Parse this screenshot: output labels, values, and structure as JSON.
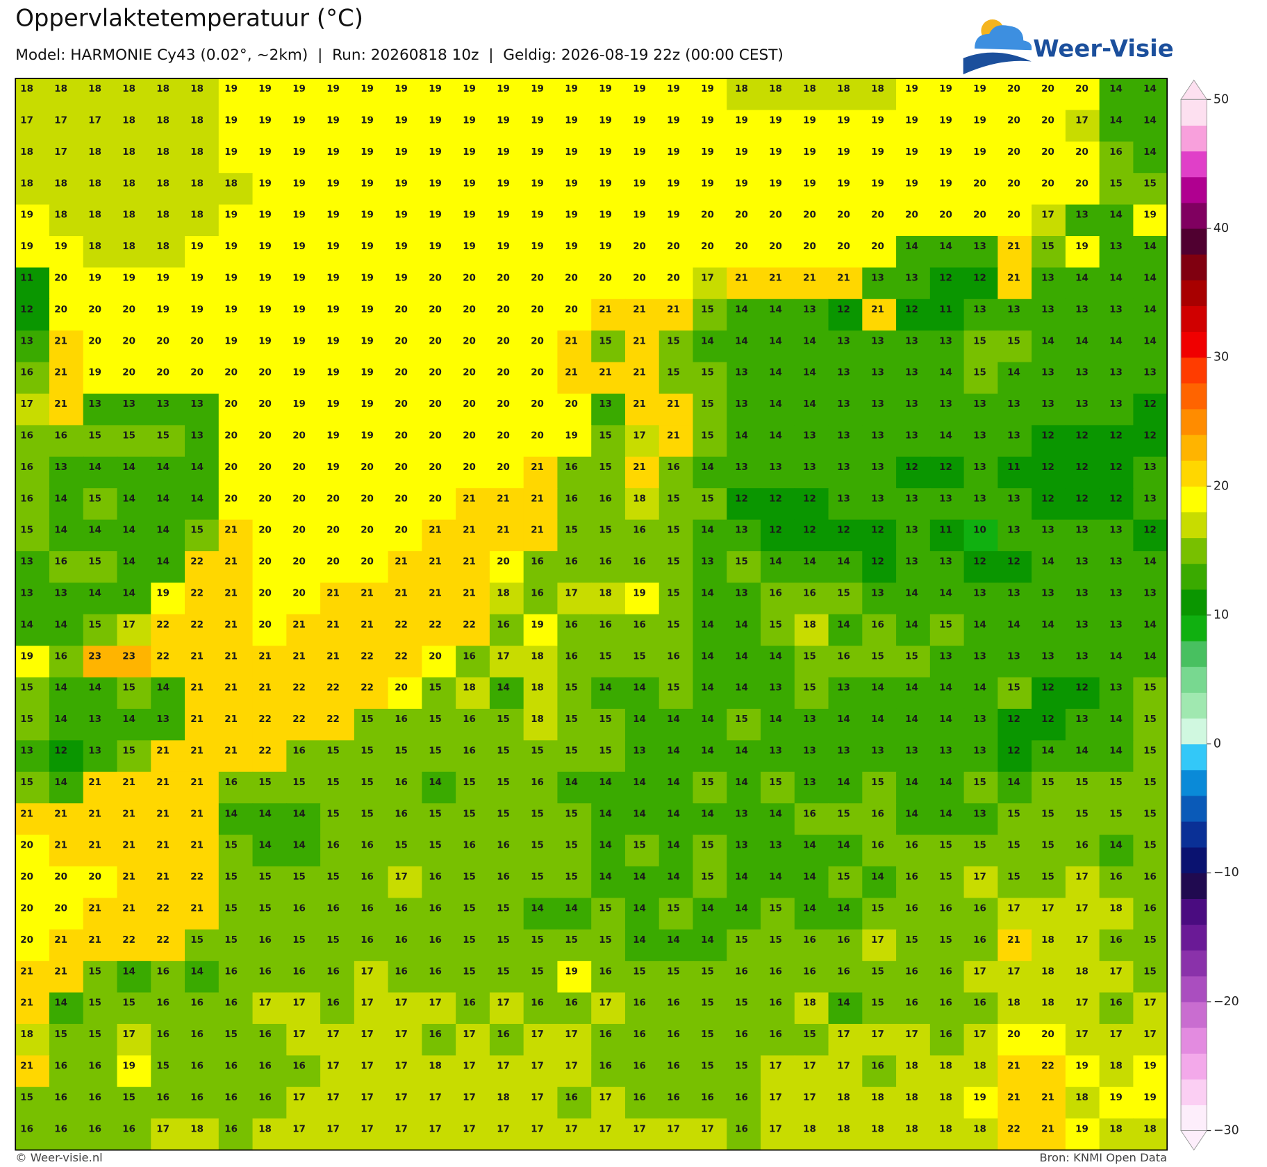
{
  "header": {
    "title": "Oppervlaktetemperatuur (°C)",
    "subtitle": "Model: HARMONIE Cy43 (0.02°, ~2km)  |  Run: 20260818 10z  |  Geldig: 2026-08-19 22z (00:00 CEST)"
  },
  "logo": {
    "text": "Weer-Visie"
  },
  "map": {
    "grid": [
      [
        18,
        18,
        18,
        18,
        18,
        18,
        19,
        19,
        19,
        19,
        19,
        19,
        19,
        19,
        19,
        19,
        19,
        19,
        19,
        19,
        19,
        18,
        18,
        18,
        18,
        18,
        19,
        19,
        19,
        20,
        20,
        20,
        14,
        14
      ],
      [
        17,
        17,
        17,
        18,
        18,
        18,
        19,
        19,
        19,
        19,
        19,
        19,
        19,
        19,
        19,
        19,
        19,
        19,
        19,
        19,
        19,
        19,
        19,
        19,
        19,
        19,
        19,
        19,
        19,
        20,
        20,
        17,
        14,
        14
      ],
      [
        18,
        17,
        18,
        18,
        18,
        18,
        19,
        19,
        19,
        19,
        19,
        19,
        19,
        19,
        19,
        19,
        19,
        19,
        19,
        19,
        19,
        19,
        19,
        19,
        19,
        19,
        19,
        19,
        19,
        20,
        20,
        20,
        16,
        14
      ],
      [
        18,
        18,
        18,
        18,
        18,
        18,
        18,
        19,
        19,
        19,
        19,
        19,
        19,
        19,
        19,
        19,
        19,
        19,
        19,
        19,
        19,
        19,
        19,
        19,
        19,
        19,
        19,
        19,
        20,
        20,
        20,
        20,
        15,
        15
      ],
      [
        19,
        18,
        18,
        18,
        18,
        18,
        19,
        19,
        19,
        19,
        19,
        19,
        19,
        19,
        19,
        19,
        19,
        19,
        19,
        19,
        20,
        20,
        20,
        20,
        20,
        20,
        20,
        20,
        20,
        20,
        17,
        13,
        14,
        19
      ],
      [
        19,
        19,
        18,
        18,
        18,
        19,
        19,
        19,
        19,
        19,
        19,
        19,
        19,
        19,
        19,
        19,
        19,
        19,
        20,
        20,
        20,
        20,
        20,
        20,
        20,
        20,
        14,
        14,
        13,
        21,
        15,
        19,
        13,
        14
      ],
      [
        11,
        20,
        19,
        19,
        19,
        19,
        19,
        19,
        19,
        19,
        19,
        19,
        20,
        20,
        20,
        20,
        20,
        20,
        20,
        20,
        17,
        21,
        21,
        21,
        21,
        13,
        13,
        12,
        12,
        21,
        13,
        14,
        14,
        14
      ],
      [
        12,
        20,
        20,
        20,
        19,
        19,
        19,
        19,
        19,
        19,
        19,
        20,
        20,
        20,
        20,
        20,
        20,
        21,
        21,
        21,
        15,
        14,
        14,
        13,
        12,
        21,
        12,
        11,
        13,
        13,
        13,
        13,
        13,
        14
      ],
      [
        13,
        21,
        20,
        20,
        20,
        20,
        19,
        19,
        19,
        19,
        19,
        20,
        20,
        20,
        20,
        20,
        21,
        15,
        21,
        15,
        14,
        14,
        14,
        14,
        13,
        13,
        13,
        13,
        15,
        15,
        14,
        14,
        14,
        14
      ],
      [
        16,
        21,
        19,
        20,
        20,
        20,
        20,
        20,
        19,
        19,
        19,
        20,
        20,
        20,
        20,
        20,
        21,
        21,
        21,
        15,
        15,
        13,
        14,
        14,
        13,
        13,
        13,
        14,
        15,
        14,
        13,
        13,
        13,
        13
      ],
      [
        17,
        21,
        13,
        13,
        13,
        13,
        20,
        20,
        19,
        19,
        19,
        20,
        20,
        20,
        20,
        20,
        20,
        13,
        21,
        21,
        15,
        13,
        14,
        14,
        13,
        13,
        13,
        13,
        13,
        13,
        13,
        13,
        13,
        12
      ],
      [
        16,
        16,
        15,
        15,
        15,
        13,
        20,
        20,
        20,
        19,
        19,
        20,
        20,
        20,
        20,
        20,
        19,
        15,
        17,
        21,
        15,
        14,
        14,
        13,
        13,
        13,
        13,
        14,
        13,
        13,
        12,
        12,
        12,
        12
      ],
      [
        16,
        13,
        14,
        14,
        14,
        14,
        20,
        20,
        20,
        19,
        20,
        20,
        20,
        20,
        20,
        21,
        16,
        15,
        21,
        16,
        14,
        13,
        13,
        13,
        13,
        13,
        12,
        12,
        13,
        11,
        12,
        12,
        12,
        13
      ],
      [
        16,
        14,
        15,
        14,
        14,
        14,
        20,
        20,
        20,
        20,
        20,
        20,
        20,
        21,
        21,
        21,
        16,
        16,
        18,
        15,
        15,
        12,
        12,
        12,
        13,
        13,
        13,
        13,
        13,
        13,
        12,
        12,
        12,
        13
      ],
      [
        15,
        14,
        14,
        14,
        14,
        15,
        21,
        20,
        20,
        20,
        20,
        20,
        21,
        21,
        21,
        21,
        15,
        15,
        16,
        15,
        14,
        13,
        12,
        12,
        12,
        12,
        13,
        11,
        10,
        13,
        13,
        13,
        13,
        12
      ],
      [
        13,
        16,
        15,
        14,
        14,
        22,
        21,
        20,
        20,
        20,
        20,
        21,
        21,
        21,
        20,
        16,
        16,
        16,
        16,
        15,
        13,
        15,
        14,
        14,
        14,
        12,
        13,
        13,
        12,
        12,
        14,
        13,
        13,
        14
      ],
      [
        13,
        13,
        14,
        14,
        19,
        22,
        21,
        20,
        20,
        21,
        21,
        21,
        21,
        21,
        18,
        16,
        17,
        18,
        19,
        15,
        14,
        13,
        16,
        16,
        15,
        13,
        14,
        14,
        13,
        13,
        13,
        13,
        13,
        13
      ],
      [
        14,
        14,
        15,
        17,
        22,
        22,
        21,
        20,
        21,
        21,
        21,
        22,
        22,
        22,
        16,
        19,
        16,
        16,
        16,
        15,
        14,
        14,
        15,
        18,
        14,
        16,
        14,
        15,
        14,
        14,
        14,
        13,
        13,
        14
      ],
      [
        19,
        16,
        23,
        23,
        22,
        21,
        21,
        21,
        21,
        21,
        22,
        22,
        20,
        16,
        17,
        18,
        16,
        15,
        15,
        16,
        14,
        14,
        14,
        15,
        16,
        15,
        15,
        13,
        13,
        13,
        13,
        13,
        14,
        14
      ],
      [
        15,
        14,
        14,
        15,
        14,
        21,
        21,
        21,
        22,
        22,
        22,
        20,
        15,
        18,
        14,
        18,
        15,
        14,
        14,
        15,
        14,
        14,
        13,
        15,
        13,
        14,
        14,
        14,
        14,
        15,
        12,
        12,
        13,
        15
      ],
      [
        15,
        14,
        13,
        14,
        13,
        21,
        21,
        22,
        22,
        22,
        15,
        16,
        15,
        16,
        15,
        18,
        15,
        15,
        14,
        14,
        14,
        15,
        14,
        13,
        14,
        14,
        14,
        14,
        13,
        12,
        12,
        13,
        14,
        15
      ],
      [
        13,
        12,
        13,
        15,
        21,
        21,
        21,
        22,
        16,
        15,
        15,
        15,
        15,
        16,
        15,
        15,
        15,
        15,
        13,
        14,
        14,
        14,
        13,
        13,
        13,
        13,
        13,
        13,
        13,
        12,
        14,
        14,
        14,
        15
      ],
      [
        15,
        14,
        21,
        21,
        21,
        21,
        16,
        15,
        15,
        15,
        15,
        16,
        14,
        15,
        15,
        16,
        14,
        14,
        14,
        14,
        15,
        14,
        15,
        13,
        14,
        15,
        14,
        14,
        15,
        14,
        15,
        15,
        15,
        15
      ],
      [
        21,
        21,
        21,
        21,
        21,
        21,
        14,
        14,
        14,
        15,
        15,
        16,
        15,
        15,
        15,
        15,
        15,
        14,
        14,
        14,
        14,
        13,
        14,
        16,
        15,
        16,
        14,
        14,
        13,
        15,
        15,
        15,
        15,
        15
      ],
      [
        20,
        21,
        21,
        21,
        21,
        21,
        15,
        14,
        14,
        16,
        16,
        15,
        15,
        16,
        16,
        15,
        15,
        14,
        15,
        14,
        15,
        13,
        13,
        14,
        14,
        16,
        16,
        15,
        15,
        15,
        15,
        16,
        14,
        15
      ],
      [
        20,
        20,
        20,
        21,
        21,
        22,
        15,
        15,
        15,
        15,
        16,
        17,
        16,
        15,
        16,
        15,
        15,
        14,
        14,
        14,
        15,
        14,
        14,
        14,
        15,
        14,
        16,
        15,
        17,
        15,
        15,
        17,
        16,
        16
      ],
      [
        20,
        20,
        21,
        21,
        22,
        21,
        15,
        15,
        16,
        16,
        16,
        16,
        16,
        15,
        15,
        14,
        14,
        15,
        14,
        15,
        14,
        14,
        15,
        14,
        14,
        15,
        16,
        16,
        16,
        17,
        17,
        17,
        18,
        16
      ],
      [
        20,
        21,
        21,
        22,
        22,
        15,
        15,
        16,
        15,
        15,
        16,
        16,
        16,
        15,
        15,
        15,
        15,
        15,
        14,
        14,
        14,
        15,
        15,
        16,
        16,
        17,
        15,
        15,
        16,
        21,
        18,
        17,
        16,
        15
      ],
      [
        21,
        21,
        15,
        14,
        16,
        14,
        16,
        16,
        16,
        16,
        17,
        16,
        16,
        15,
        15,
        15,
        19,
        16,
        15,
        15,
        15,
        16,
        16,
        16,
        16,
        15,
        16,
        16,
        17,
        17,
        18,
        18,
        17,
        15
      ],
      [
        21,
        14,
        15,
        15,
        16,
        16,
        16,
        17,
        17,
        16,
        17,
        17,
        17,
        16,
        17,
        16,
        16,
        17,
        16,
        16,
        15,
        15,
        16,
        18,
        14,
        15,
        16,
        16,
        16,
        18,
        18,
        17,
        16,
        17
      ],
      [
        18,
        15,
        15,
        17,
        16,
        16,
        15,
        16,
        17,
        17,
        17,
        17,
        16,
        17,
        16,
        17,
        17,
        16,
        16,
        16,
        15,
        16,
        16,
        15,
        17,
        17,
        17,
        16,
        17,
        20,
        20,
        17,
        17,
        17
      ],
      [
        21,
        16,
        16,
        19,
        15,
        16,
        16,
        16,
        16,
        17,
        17,
        17,
        18,
        17,
        17,
        17,
        17,
        16,
        16,
        16,
        15,
        15,
        17,
        17,
        17,
        16,
        18,
        18,
        18,
        21,
        22,
        19,
        18,
        19
      ],
      [
        15,
        16,
        16,
        15,
        16,
        16,
        16,
        16,
        17,
        17,
        17,
        17,
        17,
        17,
        18,
        17,
        16,
        17,
        16,
        16,
        16,
        16,
        17,
        17,
        18,
        18,
        18,
        18,
        19,
        21,
        21,
        18,
        19,
        19
      ],
      [
        16,
        16,
        16,
        16,
        17,
        18,
        16,
        18,
        17,
        17,
        17,
        17,
        17,
        17,
        17,
        17,
        17,
        17,
        17,
        17,
        17,
        16,
        17,
        18,
        18,
        18,
        18,
        18,
        18,
        22,
        21,
        19,
        18,
        18
      ]
    ]
  },
  "colorbar": {
    "lim": [
      -30,
      50
    ],
    "ticks": [
      50,
      40,
      30,
      20,
      10,
      0,
      {
        "value": -10,
        "label": "−10"
      },
      {
        "value": -20,
        "label": "−20"
      },
      {
        "value": -30,
        "label": "−30"
      }
    ],
    "colors": [
      "#fdeefb",
      "#fbcff3",
      "#f3a9ea",
      "#e38be0",
      "#c96dd0",
      "#aa4ebf",
      "#8a32aa",
      "#6a1a96",
      "#4a0c80",
      "#200a50",
      "#0a1270",
      "#0a3096",
      "#0a5ab8",
      "#0a8ad8",
      "#33c8f8",
      "#d0f8e0",
      "#a0e8b0",
      "#78d890",
      "#48c060",
      "#10b010",
      "#0a9600",
      "#3aaa00",
      "#78c000",
      "#c8dc00",
      "#ffff00",
      "#ffd700",
      "#ffb400",
      "#ff8c00",
      "#ff6400",
      "#ff3c00",
      "#f00000",
      "#d00000",
      "#a80000",
      "#800010",
      "#500030",
      "#800060",
      "#b00090",
      "#e040c8",
      "#f8a0dc",
      "#fde0f0"
    ]
  },
  "footer": {
    "left": "© Weer-visie.nl",
    "right": "Bron: KNMI Open Data"
  }
}
